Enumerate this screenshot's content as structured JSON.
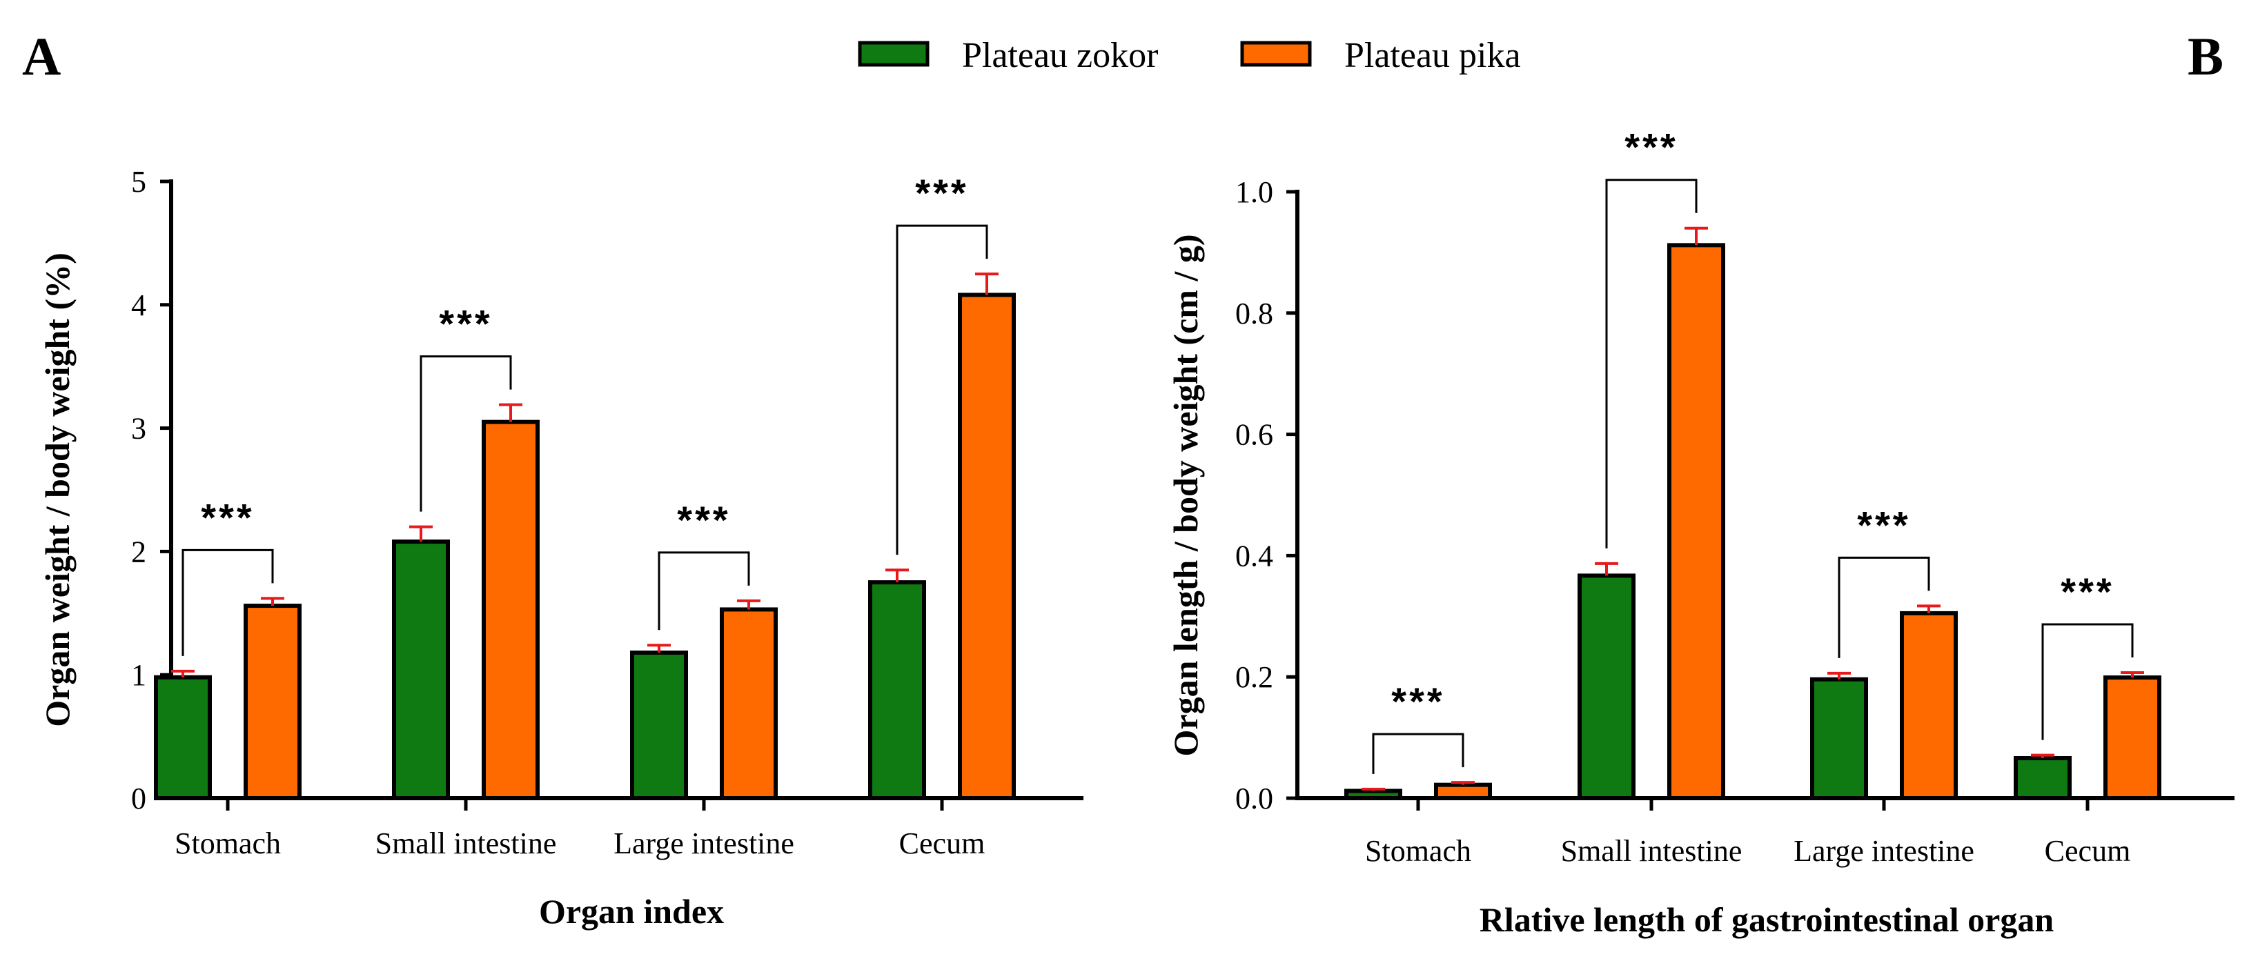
{
  "colors": {
    "series_a": "#0f7a12",
    "series_b": "#ff6a00",
    "error_bar": "#e8191b",
    "axis": "#000000"
  },
  "legend": [
    {
      "name": "Plateau zokor",
      "color": "#0f7a12"
    },
    {
      "name": "Plateau pika",
      "color": "#ff6a00"
    }
  ],
  "chart_data": [
    {
      "panel": "A",
      "type": "bar",
      "categories": [
        "Stomach",
        "Small intestine",
        "Large intestine",
        "Cecum"
      ],
      "series": [
        {
          "name": "Plateau zokor",
          "values": [
            0.98,
            2.08,
            1.18,
            1.75
          ],
          "errors": [
            0.05,
            0.12,
            0.06,
            0.1
          ]
        },
        {
          "name": "Plateau pika",
          "values": [
            1.56,
            3.05,
            1.53,
            4.08
          ],
          "errors": [
            0.06,
            0.14,
            0.07,
            0.17
          ]
        }
      ],
      "significance": [
        "***",
        "***",
        "***",
        "***"
      ],
      "xlabel": "Organ index",
      "ylabel": "Organ weight / body weight (%)",
      "ylim": [
        0,
        5
      ],
      "yticks": [
        "0",
        "1",
        "2",
        "3",
        "4",
        "5"
      ]
    },
    {
      "panel": "B",
      "type": "bar",
      "categories": [
        "Stomach",
        "Small intestine",
        "Large intestine",
        "Cecum"
      ],
      "series": [
        {
          "name": "Plateau zokor",
          "values": [
            0.012,
            0.367,
            0.196,
            0.066
          ],
          "errors": [
            0.003,
            0.02,
            0.01,
            0.005
          ]
        },
        {
          "name": "Plateau pika",
          "values": [
            0.022,
            0.912,
            0.305,
            0.199
          ],
          "errors": [
            0.004,
            0.028,
            0.012,
            0.008
          ]
        }
      ],
      "significance": [
        "***",
        "***",
        "***",
        "***"
      ],
      "xlabel": "Rlative length of  gastrointestinal organ",
      "ylabel": "Organ length / body weight (cm / g)",
      "ylim": [
        0,
        1.0
      ],
      "yticks": [
        "0.0",
        "0.2",
        "0.4",
        "0.6",
        "0.8",
        "1.0"
      ]
    }
  ]
}
